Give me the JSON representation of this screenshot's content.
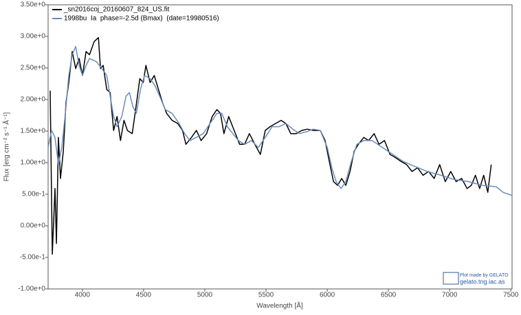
{
  "chart_data": {
    "type": "line",
    "xlabel": "Wavelength [Å]",
    "ylabel": "Flux [erg cm⁻² s⁻¹ Å⁻¹]",
    "xlim": [
      3720,
      7510
    ],
    "ylim": [
      -1.0,
      3.5
    ],
    "xticks": [
      4000,
      4500,
      5000,
      5500,
      6000,
      6500,
      7000,
      7500
    ],
    "yticks": [
      {
        "value": -1.0,
        "label": "-1.00e+0"
      },
      {
        "value": -0.5,
        "label": "-5.00e-1"
      },
      {
        "value": 0,
        "label": "0.00e+0"
      },
      {
        "value": 0.5,
        "label": "5.00e-1"
      },
      {
        "value": 1.0,
        "label": "1.00e+0"
      },
      {
        "value": 1.5,
        "label": "1.50e+0"
      },
      {
        "value": 2.0,
        "label": "2.00e+0"
      },
      {
        "value": 2.5,
        "label": "2.50e+0"
      },
      {
        "value": 3.0,
        "label": "3.00e+0"
      },
      {
        "value": 3.5,
        "label": "3.50e+0"
      }
    ],
    "grid": false,
    "legend": "upper left",
    "credit": [
      "Plot made by GELATO",
      "gelato.tng.iac.as"
    ],
    "series": [
      {
        "name": "_sn2016coj_20160607_824_US.fit",
        "color": "#000000",
        "x": [
          3737,
          3754,
          3776,
          3788,
          3804,
          3821,
          3844,
          3866,
          3889,
          3917,
          3945,
          3973,
          4001,
          4030,
          4058,
          4097,
          4131,
          4148,
          4170,
          4199,
          4227,
          4255,
          4283,
          4311,
          4340,
          4368,
          4407,
          4435,
          4469,
          4497,
          4519,
          4553,
          4587,
          4621,
          4655,
          4688,
          4733,
          4779,
          4818,
          4846,
          4891,
          4931,
          4970,
          5015,
          5060,
          5099,
          5128,
          5156,
          5195,
          5240,
          5285,
          5325,
          5364,
          5409,
          5454,
          5494,
          5533,
          5578,
          5623,
          5663,
          5702,
          5747,
          5792,
          5837,
          5887,
          5943,
          5983,
          6017,
          6051,
          6085,
          6118,
          6152,
          6186,
          6220,
          6254,
          6299,
          6338,
          6383,
          6423,
          6468,
          6513,
          6558,
          6603,
          6648,
          6693,
          6738,
          6783,
          6828,
          6874,
          6919,
          6964,
          7009,
          7053,
          7098,
          7143,
          7177,
          7211,
          7245,
          7278,
          7312,
          7340
        ],
        "values": [
          2.14,
          -0.45,
          0.59,
          -0.28,
          1.4,
          0.75,
          1.18,
          1.95,
          2.27,
          2.76,
          2.49,
          2.65,
          2.38,
          2.76,
          2.71,
          2.92,
          2.98,
          2.49,
          2.54,
          2.16,
          2.11,
          1.51,
          1.73,
          1.35,
          1.67,
          1.51,
          1.46,
          1.84,
          2.33,
          2.27,
          2.54,
          2.27,
          2.38,
          2.16,
          1.95,
          1.78,
          1.67,
          1.62,
          1.51,
          1.29,
          1.4,
          1.51,
          1.35,
          1.46,
          1.73,
          1.84,
          1.78,
          1.46,
          1.73,
          1.51,
          1.29,
          1.29,
          1.46,
          1.29,
          1.13,
          1.51,
          1.57,
          1.62,
          1.67,
          1.62,
          1.46,
          1.46,
          1.51,
          1.53,
          1.51,
          1.51,
          1.35,
          1.02,
          0.7,
          0.64,
          0.75,
          0.64,
          0.86,
          1.18,
          1.29,
          1.4,
          1.35,
          1.46,
          1.29,
          1.35,
          1.13,
          1.08,
          1.02,
          0.97,
          0.86,
          0.92,
          0.8,
          0.86,
          0.75,
          0.97,
          0.7,
          0.86,
          0.7,
          0.75,
          0.59,
          0.64,
          0.8,
          0.59,
          0.8,
          0.53,
          0.97
        ]
      },
      {
        "name": "1998bu  Ia  phase=-2.5d (Bmax)  (date=19980516)",
        "color": "#6b8cba",
        "x": [
          3720,
          3748,
          3776,
          3804,
          3832,
          3861,
          3889,
          3917,
          3945,
          3973,
          4001,
          4030,
          4058,
          4114,
          4159,
          4199,
          4227,
          4255,
          4283,
          4322,
          4356,
          4384,
          4412,
          4441,
          4474,
          4508,
          4553,
          4593,
          4632,
          4677,
          4733,
          4790,
          4835,
          4880,
          4931,
          4987,
          5043,
          5099,
          5139,
          5184,
          5229,
          5274,
          5325,
          5381,
          5437,
          5494,
          5550,
          5606,
          5663,
          5719,
          5775,
          5831,
          5887,
          5943,
          6000,
          6039,
          6073,
          6113,
          6152,
          6197,
          6242,
          6299,
          6366,
          6451,
          6535,
          6620,
          6704,
          6817,
          6929,
          7042,
          7155,
          7267,
          7380,
          7436,
          7510
        ],
        "values": [
          1.24,
          1.51,
          1.4,
          0.97,
          1.24,
          1.78,
          2.38,
          2.71,
          2.84,
          2.54,
          2.38,
          2.54,
          2.65,
          2.6,
          2.49,
          2.38,
          2.05,
          1.73,
          1.57,
          1.73,
          2.05,
          2.11,
          1.89,
          1.78,
          2.16,
          2.38,
          2.33,
          2.22,
          2.05,
          1.84,
          1.78,
          1.62,
          1.46,
          1.35,
          1.4,
          1.46,
          1.62,
          1.78,
          1.78,
          1.57,
          1.46,
          1.35,
          1.29,
          1.35,
          1.24,
          1.4,
          1.57,
          1.57,
          1.62,
          1.53,
          1.46,
          1.49,
          1.53,
          1.51,
          1.24,
          0.91,
          0.7,
          0.59,
          0.7,
          1.02,
          1.29,
          1.35,
          1.35,
          1.24,
          1.13,
          1.02,
          0.95,
          0.86,
          0.8,
          0.73,
          0.7,
          0.64,
          0.62,
          0.53,
          0.48
        ]
      }
    ]
  }
}
